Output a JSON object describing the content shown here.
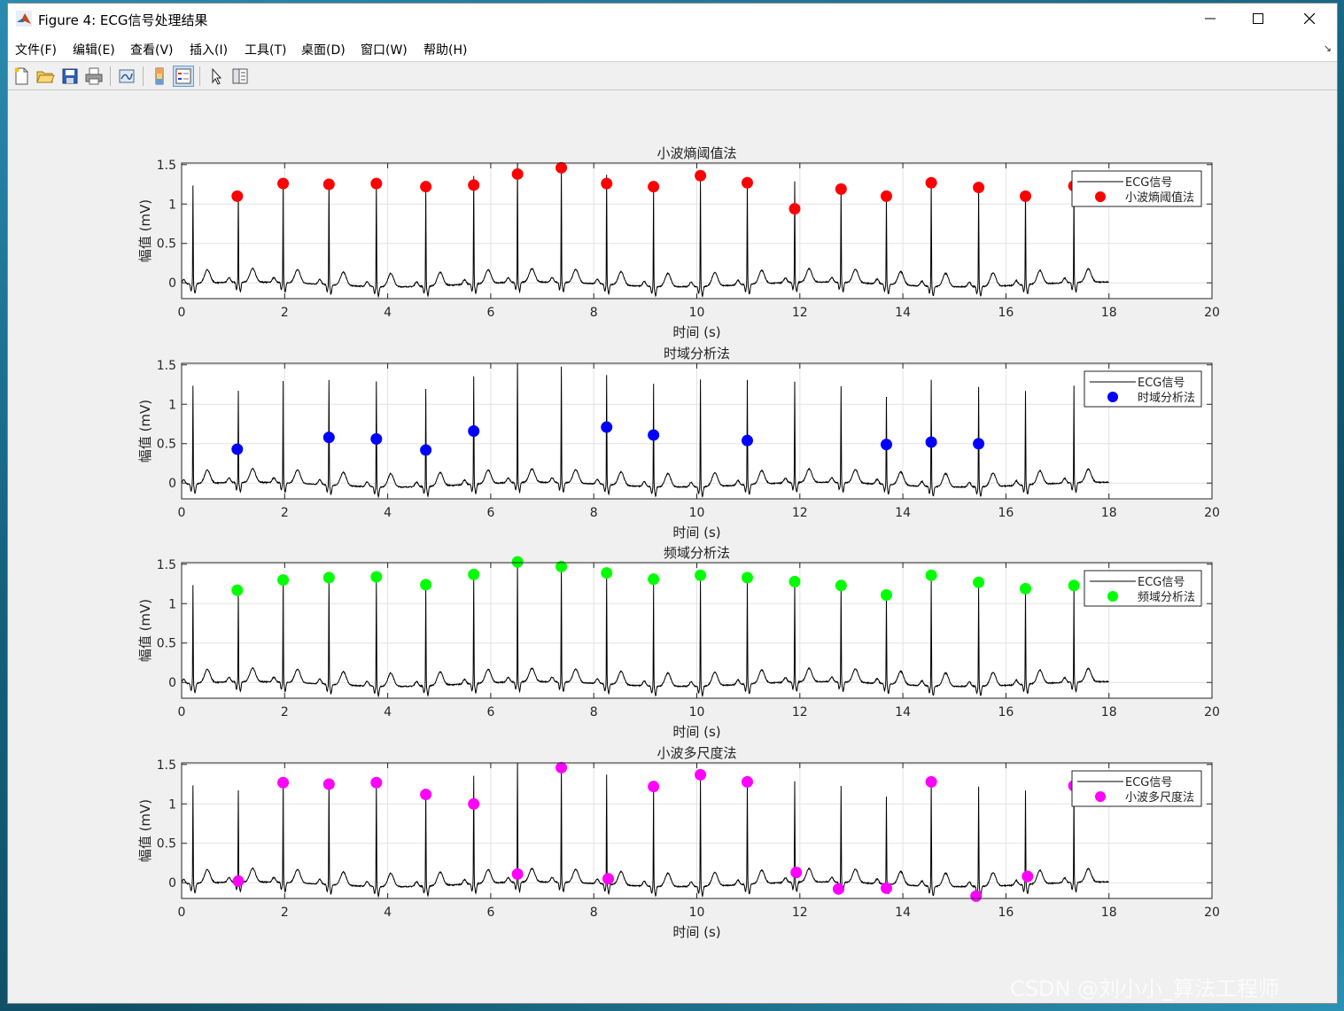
{
  "window": {
    "title": "Figure 4: ECG信号处理结果",
    "controls": [
      "minimize",
      "maximize",
      "close"
    ]
  },
  "menu": {
    "items": [
      "文件(F)",
      "编辑(E)",
      "查看(V)",
      "插入(I)",
      "工具(T)",
      "桌面(D)",
      "窗口(W)",
      "帮助(H)"
    ]
  },
  "toolbar": {
    "icons": [
      "new-figure-icon",
      "open-file-icon",
      "save-icon",
      "print-icon",
      "link-plot-icon",
      "insert-colorbar-icon",
      "insert-legend-icon",
      "edit-plot-arrow-icon",
      "property-inspector-icon"
    ]
  },
  "watermark": "CSDN @刘小小_算法工程师",
  "colors": {
    "signal": "#000000",
    "wavelet_entropy": "#ff0000",
    "time_domain": "#0000ff",
    "frequency_domain": "#00ff00",
    "wavelet_multiscale": "#ff00ff",
    "axes_bg": "#ffffff",
    "figure_bg": "#f0f0f0"
  },
  "chart_data": [
    {
      "type": "line",
      "title": "小波熵阈值法",
      "xlabel": "时间 (s)",
      "ylabel": "幅值 (mV)",
      "xlim": [
        0,
        20
      ],
      "ylim": [
        -0.2,
        1.52
      ],
      "xticks": [
        "0",
        "2",
        "4",
        "6",
        "8",
        "10",
        "12",
        "14",
        "16",
        "18",
        "20"
      ],
      "yticks": [
        "0",
        "0.5",
        "1",
        "1.5"
      ],
      "grid": true,
      "legend_position": "top-right",
      "series": [
        {
          "name": "ECG信号",
          "kind": "line",
          "color": "#000000"
        },
        {
          "name": "小波熵阈值法",
          "kind": "markers",
          "color": "#ff0000",
          "x": [
            1.08,
            1.97,
            2.86,
            3.78,
            4.74,
            5.67,
            6.52,
            7.37,
            8.25,
            9.16,
            10.07,
            10.98,
            11.9,
            12.8,
            13.68,
            14.55,
            15.47,
            16.38,
            17.32
          ],
          "y": [
            1.1,
            1.26,
            1.25,
            1.26,
            1.22,
            1.24,
            1.38,
            1.46,
            1.26,
            1.22,
            1.36,
            1.27,
            0.94,
            1.19,
            1.1,
            1.27,
            1.21,
            1.1,
            1.23
          ]
        }
      ]
    },
    {
      "type": "line",
      "title": "时域分析法",
      "xlabel": "时间 (s)",
      "ylabel": "幅值 (mV)",
      "xlim": [
        0,
        20
      ],
      "ylim": [
        -0.2,
        1.52
      ],
      "xticks": [
        "0",
        "2",
        "4",
        "6",
        "8",
        "10",
        "12",
        "14",
        "16",
        "18",
        "20"
      ],
      "yticks": [
        "0",
        "0.5",
        "1",
        "1.5"
      ],
      "grid": true,
      "legend_position": "top-right",
      "series": [
        {
          "name": "ECG信号",
          "kind": "line",
          "color": "#000000"
        },
        {
          "name": "时域分析法",
          "kind": "markers",
          "color": "#0000ff",
          "x": [
            1.08,
            2.86,
            3.78,
            4.74,
            5.67,
            8.25,
            9.16,
            10.98,
            13.68,
            14.55,
            15.47
          ],
          "y": [
            0.43,
            0.58,
            0.56,
            0.42,
            0.66,
            0.71,
            0.61,
            0.54,
            0.49,
            0.52,
            0.5
          ]
        }
      ]
    },
    {
      "type": "line",
      "title": "频域分析法",
      "xlabel": "时间 (s)",
      "ylabel": "幅值 (mV)",
      "xlim": [
        0,
        20
      ],
      "ylim": [
        -0.2,
        1.52
      ],
      "xticks": [
        "0",
        "2",
        "4",
        "6",
        "8",
        "10",
        "12",
        "14",
        "16",
        "18",
        "20"
      ],
      "yticks": [
        "0",
        "0.5",
        "1",
        "1.5"
      ],
      "grid": true,
      "legend_position": "top-right",
      "series": [
        {
          "name": "ECG信号",
          "kind": "line",
          "color": "#000000"
        },
        {
          "name": "频域分析法",
          "kind": "markers",
          "color": "#00ff00",
          "x": [
            1.08,
            1.97,
            2.86,
            3.78,
            4.74,
            5.67,
            6.52,
            7.37,
            8.25,
            9.16,
            10.07,
            10.98,
            11.9,
            12.8,
            13.68,
            14.55,
            15.47,
            16.38,
            17.32
          ],
          "y": [
            1.17,
            1.3,
            1.33,
            1.34,
            1.24,
            1.37,
            1.53,
            1.47,
            1.39,
            1.31,
            1.36,
            1.33,
            1.28,
            1.23,
            1.11,
            1.36,
            1.27,
            1.19,
            1.23
          ]
        }
      ]
    },
    {
      "type": "line",
      "title": "小波多尺度法",
      "xlabel": "时间 (s)",
      "ylabel": "幅值 (mV)",
      "xlim": [
        0,
        20
      ],
      "ylim": [
        -0.2,
        1.52
      ],
      "xticks": [
        "0",
        "2",
        "4",
        "6",
        "8",
        "10",
        "12",
        "14",
        "16",
        "18",
        "20"
      ],
      "yticks": [
        "0",
        "0.5",
        "1",
        "1.5"
      ],
      "grid": true,
      "legend_position": "top-right",
      "series": [
        {
          "name": "ECG信号",
          "kind": "line",
          "color": "#000000"
        },
        {
          "name": "小波多尺度法",
          "kind": "markers",
          "color": "#ff00ff",
          "x": [
            1.1,
            1.97,
            2.86,
            3.78,
            4.74,
            5.67,
            6.52,
            7.37,
            8.28,
            9.16,
            10.07,
            10.98,
            11.93,
            12.75,
            13.68,
            14.55,
            15.42,
            16.42,
            17.32
          ],
          "y": [
            0.02,
            1.27,
            1.25,
            1.27,
            1.12,
            1.0,
            0.11,
            1.46,
            0.05,
            1.22,
            1.37,
            1.28,
            0.13,
            -0.08,
            -0.07,
            1.28,
            -0.17,
            0.08,
            1.23
          ]
        }
      ]
    }
  ],
  "ecg_signal": {
    "duration": 18.0,
    "r_peak_times": [
      0.22,
      1.1,
      1.97,
      2.86,
      3.78,
      4.74,
      5.67,
      6.52,
      7.37,
      8.25,
      9.16,
      10.07,
      10.98,
      11.9,
      12.8,
      13.68,
      14.55,
      15.47,
      16.38,
      17.32
    ],
    "r_peak_heights": [
      1.25,
      1.17,
      1.3,
      1.33,
      1.34,
      1.24,
      1.37,
      1.53,
      1.47,
      1.39,
      1.31,
      1.36,
      1.33,
      1.28,
      1.23,
      1.11,
      1.36,
      1.27,
      1.19,
      1.23
    ]
  }
}
